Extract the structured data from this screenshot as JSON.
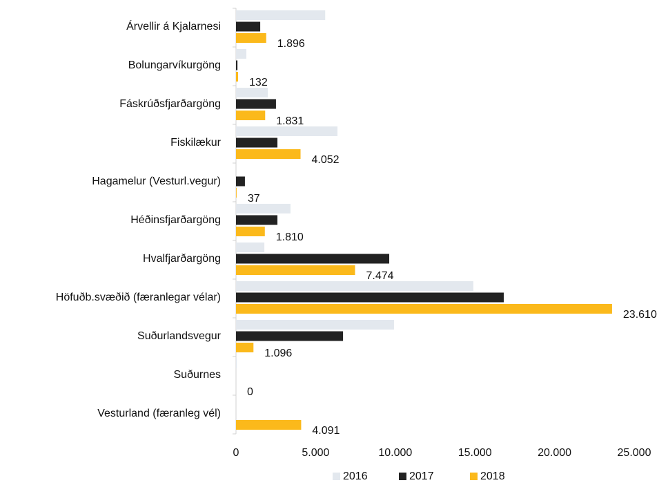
{
  "chart_data": {
    "type": "bar",
    "orientation": "horizontal",
    "categories": [
      "Árvellir á Kjalarnesi",
      "Bolungarvíkurgöng",
      "Fáskrúðsfjarðargöng",
      "Fiskilækur",
      "Hagamelur (Vesturl.vegur)",
      "Héðinsfjarðargöng",
      "Hvalfjarðargöng",
      "Höfuðb.svæðið (færanlegar vélar)",
      "Suðurlandsvegur",
      "Suðurnes",
      "Vesturland (færanleg vél)"
    ],
    "series": [
      {
        "name": "2016",
        "color": "#e3e8ee",
        "values": [
          5600,
          650,
          2000,
          6370,
          0,
          3420,
          1780,
          14900,
          9920,
          50,
          0
        ]
      },
      {
        "name": "2017",
        "color": "#222222",
        "values": [
          1520,
          90,
          2510,
          2600,
          560,
          2600,
          9620,
          16810,
          6720,
          0,
          0
        ]
      },
      {
        "name": "2018",
        "color": "#fbb91b",
        "values": [
          1896,
          132,
          1831,
          4052,
          37,
          1810,
          7474,
          23610,
          1096,
          0,
          4091
        ],
        "value_labels": [
          "1.896",
          "132",
          "1.831",
          "4.052",
          "37",
          "1.810",
          "7.474",
          "23.610",
          "1.096",
          "0",
          "4.091"
        ]
      }
    ],
    "xlim": [
      0,
      25000
    ],
    "xticks": [
      0,
      {
        "value": 5000,
        "label": "5.000"
      },
      {
        "value": 10000,
        "label": "10.000"
      },
      {
        "value": 15000,
        "label": "15.000"
      },
      {
        "value": 20000,
        "label": "20.000"
      },
      {
        "value": 25000,
        "label": "25.000"
      }
    ],
    "legend": "bottom"
  }
}
